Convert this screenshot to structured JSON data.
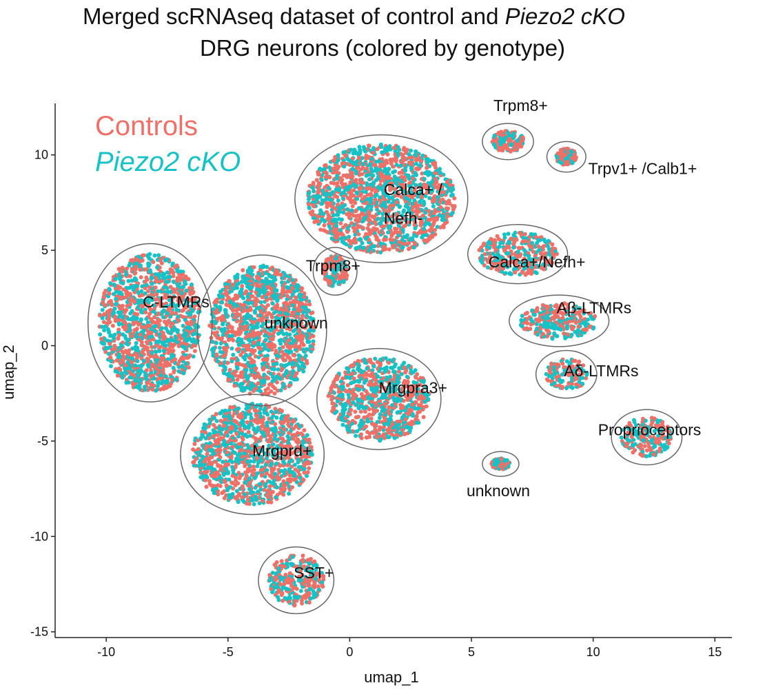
{
  "title": {
    "line1_prefix": "Merged scRNAseq dataset of control and ",
    "line1_italic": "Piezo2 cKO",
    "line2": "DRG neurons (colored by genotype)"
  },
  "chart_data": {
    "type": "scatter",
    "xlabel": "umap_1",
    "ylabel": "umap_2",
    "xlim": [
      -12.1,
      15.7
    ],
    "ylim": [
      -15.3,
      12.7
    ],
    "x_ticks": [
      -10,
      -5,
      0,
      5,
      10,
      15
    ],
    "y_ticks": [
      -15,
      -10,
      -5,
      0,
      5,
      10
    ],
    "x_tick_labels": [
      "-10",
      "-5",
      "0",
      "5",
      "10",
      "15"
    ],
    "y_tick_labels": [
      "-15",
      "-10",
      "-5",
      "0",
      "5",
      "10"
    ],
    "grid": false,
    "legend_position": "top-left",
    "series": [
      {
        "name": "Controls",
        "color": "#F07068"
      },
      {
        "name": "Piezo2 cKO",
        "color": "#16C2C5"
      }
    ],
    "clusters": [
      {
        "label": "C-LTMRs",
        "label_xy": [
          -8.5,
          2.0
        ],
        "center": [
          -8.2,
          1.2
        ],
        "spread": [
          2.2,
          3.8
        ]
      },
      {
        "label": "unknown",
        "label_xy": [
          -3.5,
          0.9
        ],
        "center": [
          -3.6,
          0.8
        ],
        "spread": [
          2.3,
          3.6
        ]
      },
      {
        "label": "Mrgprd+",
        "label_xy": [
          -4.0,
          -5.8
        ],
        "center": [
          -4.0,
          -5.7
        ],
        "spread": [
          2.6,
          2.8
        ]
      },
      {
        "label": "SST+",
        "label_xy": [
          -2.3,
          -12.2
        ],
        "center": [
          -2.2,
          -12.3
        ],
        "spread": [
          1.2,
          1.4
        ]
      },
      {
        "label": "Mrgpra3+",
        "label_xy": [
          1.2,
          -2.5
        ],
        "center": [
          1.2,
          -2.8
        ],
        "spread": [
          2.2,
          2.3
        ]
      },
      {
        "label": "Trpm8+",
        "label_xy": [
          -1.8,
          3.9
        ],
        "center": [
          -0.6,
          3.9
        ],
        "spread": [
          0.55,
          0.9
        ]
      },
      {
        "label": "Calca+ /",
        "label_xy": [
          1.4,
          7.9
        ],
        "center": [
          1.3,
          7.7
        ],
        "spread": [
          3.2,
          3.0
        ]
      },
      {
        "label": "Nefh-",
        "label_xy": [
          1.4,
          6.4
        ],
        "center": null,
        "spread": null
      },
      {
        "label": "Trpm8+",
        "label_xy": [
          5.9,
          12.3
        ],
        "center": [
          6.5,
          10.7
        ],
        "spread": [
          0.7,
          0.6
        ]
      },
      {
        "label": "Trpv1+ /Calb1+",
        "label_xy": [
          9.8,
          9.0
        ],
        "center": [
          8.9,
          9.9
        ],
        "spread": [
          0.45,
          0.45
        ]
      },
      {
        "label": "Calca+/Nefh+",
        "label_xy": [
          5.7,
          4.1
        ],
        "center": [
          6.9,
          4.8
        ],
        "spread": [
          1.7,
          1.2
        ]
      },
      {
        "label": "Aβ-LTMRs",
        "label_xy": [
          8.5,
          1.7
        ],
        "center": [
          8.6,
          1.3
        ],
        "spread": [
          1.7,
          1.0
        ]
      },
      {
        "label": "Aδ-LTMRs",
        "label_xy": [
          8.8,
          -1.6
        ],
        "center": [
          8.9,
          -1.5
        ],
        "spread": [
          0.9,
          0.9
        ]
      },
      {
        "label": "Proprioceptors",
        "label_xy": [
          10.2,
          -4.7
        ],
        "center": [
          12.2,
          -4.8
        ],
        "spread": [
          1.1,
          1.1
        ]
      },
      {
        "label": "unknown",
        "label_xy": [
          4.8,
          -7.9
        ],
        "center": [
          6.2,
          -6.2
        ],
        "spread": [
          0.4,
          0.3
        ]
      }
    ]
  }
}
